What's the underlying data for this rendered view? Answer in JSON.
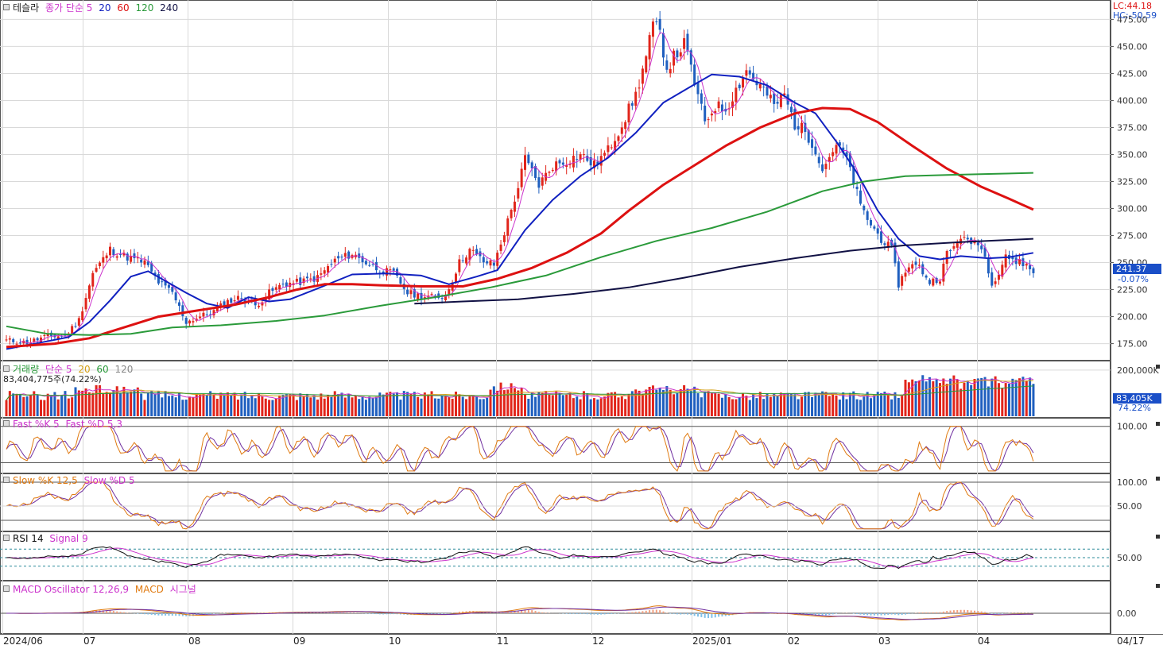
{
  "colors": {
    "up": "#e1251b",
    "down": "#1f5fbf",
    "ma5": "#cc33cc",
    "ma20": "#1020c0",
    "ma60": "#dd1111",
    "ma120": "#2a9a3a",
    "ma240": "#111144",
    "grid": "#d9d9d9",
    "price_tag": "#1a4fc8"
  },
  "price_panel": {
    "stock_name": "테슬라",
    "ma_legend": {
      "label": "종가 단순 5",
      "p20": "20",
      "p60": "60",
      "p120": "120",
      "p240": "240"
    },
    "lc_label": "LC:44.18",
    "hc_label": "HC:-50.59",
    "current_price": "241.37",
    "change_pct": "-0.07%",
    "y_ticks": [
      "475.00",
      "450.00",
      "425.00",
      "400.00",
      "375.00",
      "350.00",
      "325.00",
      "300.00",
      "275.00",
      "250.00",
      "225.00",
      "200.00",
      "175.00"
    ]
  },
  "volume_panel": {
    "legend": {
      "title": "거래량",
      "ma_label": "단순 5",
      "p20": "20",
      "p60": "60",
      "p120": "120"
    },
    "summary": "83,404,775주(74.22%)",
    "y_tick": "200,000K",
    "current_volume": "83,405K",
    "current_pct": "74.22%"
  },
  "fast_stoch": {
    "legend": {
      "k": "Fast %K 5",
      "d": "Fast %D 5,3"
    },
    "y_tick": "100.00"
  },
  "slow_stoch": {
    "legend": {
      "k": "Slow %K 12,5",
      "d": "Slow %D 5"
    },
    "y_ticks": [
      "100.00",
      "50.00"
    ]
  },
  "rsi": {
    "legend": {
      "rsi": "RSI 14",
      "signal": "Signal 9"
    },
    "y_tick": "50.00"
  },
  "macd": {
    "legend": {
      "osc": "MACD Oscillator 12,26,9",
      "macd": "MACD",
      "signal": "시그널"
    },
    "y_tick": "0.00"
  },
  "x_axis": {
    "labels": [
      "2024/06",
      "07",
      "08",
      "09",
      "10",
      "11",
      "12",
      "2025/01",
      "02",
      "03",
      "04"
    ],
    "right_label": "04/17"
  },
  "chart_data": {
    "type": "candlestick",
    "title": "테슬라",
    "ylim": [
      160,
      490
    ],
    "x_labels": [
      "2024/06",
      "07",
      "08",
      "09",
      "10",
      "11",
      "12",
      "2025/01",
      "02",
      "03",
      "04"
    ],
    "anchors": [
      {
        "i": 0,
        "c": 178
      },
      {
        "i": 6,
        "c": 176
      },
      {
        "i": 12,
        "c": 182
      },
      {
        "i": 17,
        "c": 182
      },
      {
        "i": 21,
        "c": 197
      },
      {
        "i": 25,
        "c": 240
      },
      {
        "i": 30,
        "c": 262
      },
      {
        "i": 35,
        "c": 255
      },
      {
        "i": 40,
        "c": 250
      },
      {
        "i": 44,
        "c": 232
      },
      {
        "i": 48,
        "c": 222
      },
      {
        "i": 52,
        "c": 195
      },
      {
        "i": 56,
        "c": 200
      },
      {
        "i": 60,
        "c": 205
      },
      {
        "i": 64,
        "c": 214
      },
      {
        "i": 68,
        "c": 218
      },
      {
        "i": 72,
        "c": 210
      },
      {
        "i": 76,
        "c": 222
      },
      {
        "i": 80,
        "c": 230
      },
      {
        "i": 85,
        "c": 232
      },
      {
        "i": 90,
        "c": 236
      },
      {
        "i": 95,
        "c": 252
      },
      {
        "i": 100,
        "c": 258
      },
      {
        "i": 104,
        "c": 250
      },
      {
        "i": 108,
        "c": 243
      },
      {
        "i": 112,
        "c": 240
      },
      {
        "i": 116,
        "c": 222
      },
      {
        "i": 120,
        "c": 219
      },
      {
        "i": 124,
        "c": 218
      },
      {
        "i": 127,
        "c": 219
      },
      {
        "i": 131,
        "c": 250
      },
      {
        "i": 134,
        "c": 262
      },
      {
        "i": 138,
        "c": 251
      },
      {
        "i": 141,
        "c": 248
      },
      {
        "i": 145,
        "c": 288
      },
      {
        "i": 148,
        "c": 320
      },
      {
        "i": 150,
        "c": 346
      },
      {
        "i": 154,
        "c": 322
      },
      {
        "i": 158,
        "c": 340
      },
      {
        "i": 162,
        "c": 344
      },
      {
        "i": 166,
        "c": 350
      },
      {
        "i": 170,
        "c": 340
      },
      {
        "i": 174,
        "c": 354
      },
      {
        "i": 178,
        "c": 378
      },
      {
        "i": 182,
        "c": 405
      },
      {
        "i": 185,
        "c": 440
      },
      {
        "i": 187,
        "c": 470
      },
      {
        "i": 189,
        "c": 462
      },
      {
        "i": 191,
        "c": 430
      },
      {
        "i": 193,
        "c": 440
      },
      {
        "i": 196,
        "c": 452
      },
      {
        "i": 198,
        "c": 430
      },
      {
        "i": 200,
        "c": 403
      },
      {
        "i": 202,
        "c": 380
      },
      {
        "i": 205,
        "c": 395
      },
      {
        "i": 208,
        "c": 392
      },
      {
        "i": 211,
        "c": 410
      },
      {
        "i": 214,
        "c": 428
      },
      {
        "i": 216,
        "c": 420
      },
      {
        "i": 219,
        "c": 410
      },
      {
        "i": 222,
        "c": 395
      },
      {
        "i": 225,
        "c": 405
      },
      {
        "i": 228,
        "c": 378
      },
      {
        "i": 231,
        "c": 372
      },
      {
        "i": 234,
        "c": 355
      },
      {
        "i": 236,
        "c": 335
      },
      {
        "i": 238,
        "c": 350
      },
      {
        "i": 241,
        "c": 357
      },
      {
        "i": 244,
        "c": 337
      },
      {
        "i": 247,
        "c": 302
      },
      {
        "i": 250,
        "c": 285
      },
      {
        "i": 253,
        "c": 272
      },
      {
        "i": 256,
        "c": 262
      },
      {
        "i": 258,
        "c": 230
      },
      {
        "i": 261,
        "c": 248
      },
      {
        "i": 264,
        "c": 246
      },
      {
        "i": 267,
        "c": 232
      },
      {
        "i": 270,
        "c": 236
      },
      {
        "i": 272,
        "c": 258
      },
      {
        "i": 274,
        "c": 264
      },
      {
        "i": 276,
        "c": 275
      },
      {
        "i": 278,
        "c": 268
      },
      {
        "i": 281,
        "c": 270
      },
      {
        "i": 283,
        "c": 255
      },
      {
        "i": 285,
        "c": 232
      },
      {
        "i": 287,
        "c": 240
      },
      {
        "i": 289,
        "c": 258
      },
      {
        "i": 291,
        "c": 250
      },
      {
        "i": 293,
        "c": 252
      },
      {
        "i": 295,
        "c": 247
      },
      {
        "i": 297,
        "c": 241
      }
    ],
    "moving_averages": [
      {
        "name": "MA20",
        "points": [
          [
            0,
            170
          ],
          [
            10,
            176
          ],
          [
            18,
            181
          ],
          [
            24,
            195
          ],
          [
            30,
            215
          ],
          [
            36,
            237
          ],
          [
            41,
            242
          ],
          [
            46,
            233
          ],
          [
            52,
            222
          ],
          [
            58,
            212
          ],
          [
            64,
            208
          ],
          [
            70,
            218
          ],
          [
            76,
            214
          ],
          [
            82,
            216
          ],
          [
            90,
            226
          ],
          [
            100,
            239
          ],
          [
            110,
            240
          ],
          [
            120,
            238
          ],
          [
            128,
            230
          ],
          [
            136,
            237
          ],
          [
            142,
            243
          ],
          [
            150,
            280
          ],
          [
            158,
            308
          ],
          [
            166,
            330
          ],
          [
            174,
            347
          ],
          [
            182,
            370
          ],
          [
            190,
            398
          ],
          [
            198,
            413
          ],
          [
            204,
            424
          ],
          [
            212,
            422
          ],
          [
            220,
            414
          ],
          [
            228,
            398
          ],
          [
            234,
            388
          ],
          [
            240,
            362
          ],
          [
            246,
            333
          ],
          [
            252,
            298
          ],
          [
            258,
            272
          ],
          [
            264,
            256
          ],
          [
            270,
            253
          ],
          [
            276,
            256
          ],
          [
            284,
            254
          ],
          [
            290,
            255
          ],
          [
            297,
            259
          ]
        ]
      },
      {
        "name": "MA60",
        "points": [
          [
            0,
            172
          ],
          [
            14,
            175
          ],
          [
            24,
            180
          ],
          [
            34,
            190
          ],
          [
            44,
            200
          ],
          [
            56,
            206
          ],
          [
            66,
            211
          ],
          [
            76,
            218
          ],
          [
            84,
            225
          ],
          [
            92,
            230
          ],
          [
            100,
            230
          ],
          [
            108,
            229
          ],
          [
            120,
            228
          ],
          [
            132,
            228
          ],
          [
            142,
            235
          ],
          [
            152,
            245
          ],
          [
            162,
            259
          ],
          [
            172,
            277
          ],
          [
            180,
            298
          ],
          [
            190,
            322
          ],
          [
            200,
            342
          ],
          [
            208,
            358
          ],
          [
            218,
            375
          ],
          [
            228,
            388
          ],
          [
            236,
            393
          ],
          [
            244,
            392
          ],
          [
            252,
            380
          ],
          [
            262,
            358
          ],
          [
            272,
            337
          ],
          [
            282,
            320
          ],
          [
            290,
            309
          ],
          [
            297,
            299
          ]
        ]
      },
      {
        "name": "MA120",
        "points": [
          [
            0,
            191
          ],
          [
            12,
            184
          ],
          [
            24,
            183
          ],
          [
            36,
            184
          ],
          [
            48,
            190
          ],
          [
            62,
            192
          ],
          [
            78,
            196
          ],
          [
            92,
            201
          ],
          [
            108,
            210
          ],
          [
            124,
            218
          ],
          [
            140,
            227
          ],
          [
            156,
            238
          ],
          [
            172,
            255
          ],
          [
            188,
            270
          ],
          [
            204,
            282
          ],
          [
            220,
            297
          ],
          [
            236,
            316
          ],
          [
            248,
            325
          ],
          [
            260,
            330
          ],
          [
            272,
            331
          ],
          [
            284,
            332
          ],
          [
            297,
            333
          ]
        ]
      },
      {
        "name": "MA240",
        "points": [
          [
            118,
            212
          ],
          [
            132,
            214
          ],
          [
            148,
            216
          ],
          [
            164,
            221
          ],
          [
            180,
            227
          ],
          [
            196,
            236
          ],
          [
            212,
            246
          ],
          [
            228,
            254
          ],
          [
            244,
            261
          ],
          [
            260,
            266
          ],
          [
            276,
            269
          ],
          [
            290,
            271
          ],
          [
            297,
            272
          ]
        ]
      }
    ]
  }
}
